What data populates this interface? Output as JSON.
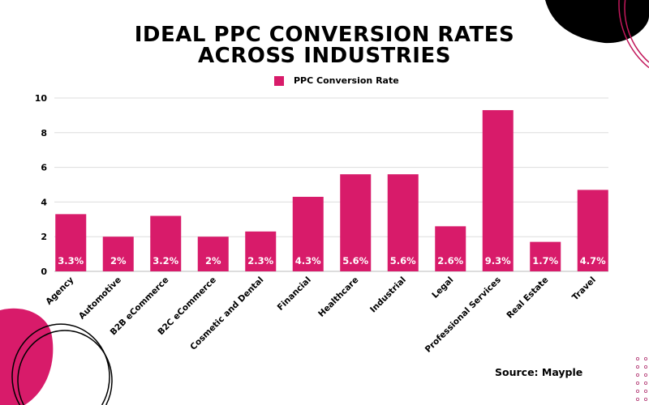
{
  "title_lines": [
    "IDEAL PPC CONVERSION RATES",
    "ACROSS INDUSTRIES"
  ],
  "source": "Source: Mayple",
  "colors": {
    "bar": "#d81b6a",
    "grid": "#dddddd",
    "decoration_black": "#000000",
    "decoration_pink": "#d81b6a"
  },
  "chart_data": {
    "type": "bar",
    "title": "IDEAL PPC CONVERSION RATES ACROSS INDUSTRIES",
    "xlabel": "",
    "ylabel": "",
    "ylim": [
      0,
      10
    ],
    "yticks": [
      0,
      2,
      4,
      6,
      8,
      10
    ],
    "grid": true,
    "legend_position": "top-center",
    "categories": [
      "Agency",
      "Automotive",
      "B2B eCommerce",
      "B2C eCommerce",
      "Cosmetic and Dental",
      "Financial",
      "Healthcare",
      "Industrial",
      "Legal",
      "Professional Services",
      "Real Estate",
      "Travel"
    ],
    "series": [
      {
        "name": "PPC Conversion Rate",
        "values": [
          3.3,
          2,
          3.2,
          2,
          2.3,
          4.3,
          5.6,
          5.6,
          2.6,
          9.3,
          1.7,
          4.7
        ],
        "data_labels": [
          "3.3%",
          "2%",
          "3.2%",
          "2%",
          "2.3%",
          "4.3%",
          "5.6%",
          "5.6%",
          "2.6%",
          "9.3%",
          "1.7%",
          "4.7%"
        ]
      }
    ]
  }
}
